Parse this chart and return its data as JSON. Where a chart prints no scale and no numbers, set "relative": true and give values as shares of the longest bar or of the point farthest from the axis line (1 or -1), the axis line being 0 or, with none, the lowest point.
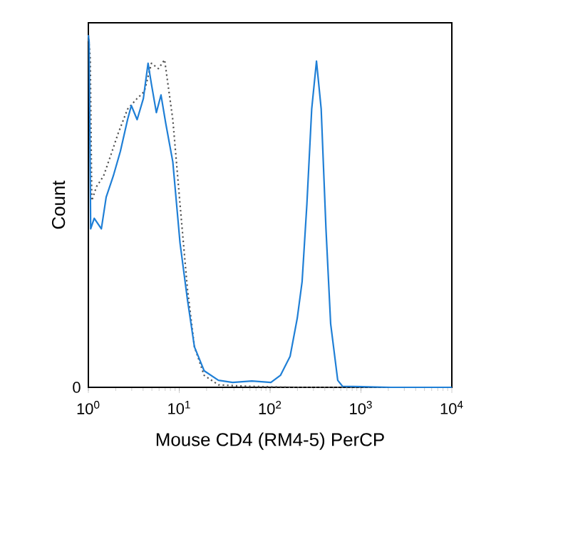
{
  "chart_data": {
    "type": "line",
    "relative": true,
    "xlabel": "Mouse CD4 (RM4-5) PerCP",
    "ylabel": "Count",
    "log": "x",
    "xlim": [
      1,
      10000
    ],
    "xticks": [
      {
        "value": 1,
        "label": "10$^{0}$"
      },
      {
        "value": 10,
        "label": "10$^{1}$"
      },
      {
        "value": 100,
        "label": "10$^{2}$"
      },
      {
        "value": 1000,
        "label": "10$^{3}$"
      },
      {
        "value": 10000,
        "label": "10$^{4}$"
      }
    ],
    "annotations": [
      "0"
    ],
    "grid": false,
    "marker": "none",
    "series": [
      {
        "color": "#555555",
        "line_style": "dotted",
        "x": [
          1.0,
          1.05,
          1.09,
          1.23,
          1.47,
          1.77,
          2.12,
          2.7,
          3.44,
          4.13,
          4.95,
          5.9,
          6.9,
          8.5,
          10.2,
          12.3,
          14.7,
          18.8,
          27,
          56,
          188,
          10000
        ],
        "values": [
          1.0,
          0.93,
          0.53,
          0.57,
          0.6,
          0.66,
          0.72,
          0.79,
          0.82,
          0.84,
          0.92,
          0.905,
          0.93,
          0.76,
          0.52,
          0.28,
          0.115,
          0.034,
          0.007,
          0.003,
          0,
          0
        ]
      },
      {
        "color": "#1f7fd6",
        "line_style": "solid",
        "x": [
          1.0,
          1.02,
          1.06,
          1.16,
          1.39,
          1.57,
          1.88,
          2.25,
          2.7,
          2.97,
          3.44,
          4.03,
          4.54,
          4.95,
          5.6,
          6.3,
          7.1,
          8.5,
          10.2,
          12.3,
          14.7,
          18.8,
          27,
          38.7,
          63,
          102,
          130,
          166,
          199,
          225,
          254,
          287,
          324,
          365,
          412,
          464,
          555,
          626,
          2130,
          10000
        ],
        "values": [
          1.0,
          0.98,
          0.45,
          0.48,
          0.45,
          0.54,
          0.6,
          0.67,
          0.76,
          0.8,
          0.76,
          0.82,
          0.92,
          0.86,
          0.78,
          0.83,
          0.75,
          0.64,
          0.41,
          0.25,
          0.115,
          0.047,
          0.02,
          0.014,
          0.018,
          0.014,
          0.034,
          0.088,
          0.196,
          0.3,
          0.52,
          0.79,
          0.926,
          0.79,
          0.45,
          0.18,
          0.02,
          0.003,
          0,
          0
        ]
      }
    ]
  }
}
